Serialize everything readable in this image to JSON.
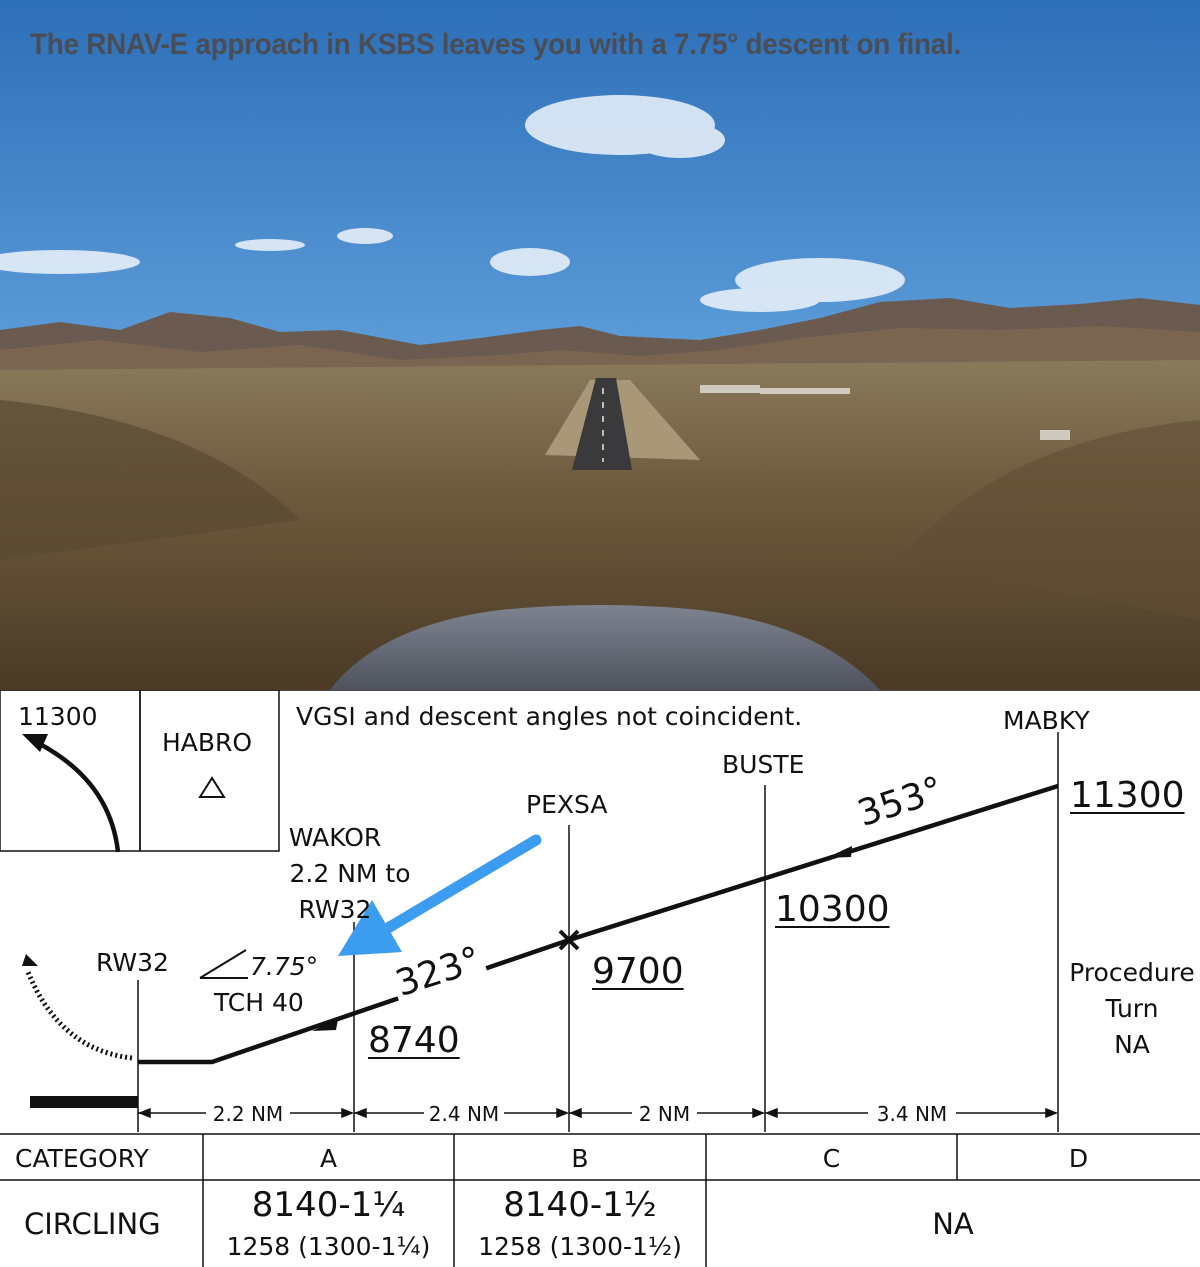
{
  "headline": "The RNAV-E approach in KSBS leaves you with a 7.75° descent on final.",
  "profile": {
    "note": "VGSI and descent angles not coincident.",
    "missed_altitude": "11300",
    "holding_fix": "HABRO",
    "fixes": {
      "mabky": "MABKY",
      "buste": "BUSTE",
      "pexsa": "PEXSA",
      "wakor_name": "WAKOR",
      "wakor_dist": "2.2 NM to",
      "wakor_rwy": "RW32",
      "runway": "RW32"
    },
    "altitudes": {
      "mabky": "11300",
      "buste": "10300",
      "pexsa": "9700",
      "wakor": "8740"
    },
    "courses": {
      "initial": "353°",
      "final": "323°"
    },
    "glidepath": {
      "angle": "7.75°",
      "tch": "TCH 40"
    },
    "procedure_turn": [
      "Procedure",
      "Turn",
      "NA"
    ],
    "distances": [
      "2.2 NM",
      "2.4 NM",
      "2 NM",
      "3.4 NM"
    ]
  },
  "minimums": {
    "category_label": "CATEGORY",
    "categories": [
      "A",
      "B",
      "C",
      "D"
    ],
    "circling_label": "CIRCLING",
    "circling_a": [
      "8140-1¼",
      "1258 (1300-1¼)"
    ],
    "circling_b": [
      "8140-1½",
      "1258 (1300-1½)"
    ],
    "circling_cd": "NA"
  },
  "colors": {
    "annotation_arrow": "#3b9cf0",
    "headline": "#4a4d55"
  }
}
